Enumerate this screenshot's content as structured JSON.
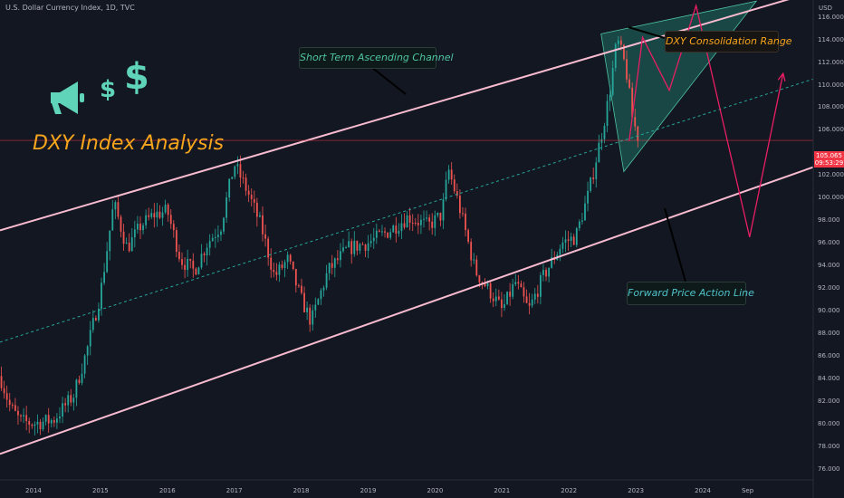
{
  "header": {
    "symbol_line": "U.S. Dollar Currency Index, 1D, TVC"
  },
  "axis": {
    "currency": "USD",
    "y_ticks": [
      "116.000",
      "114.000",
      "112.000",
      "110.000",
      "108.000",
      "106.000",
      "102.000",
      "100.000",
      "98.000",
      "96.000",
      "94.000",
      "92.000",
      "90.000",
      "88.000",
      "86.000",
      "84.000",
      "82.000",
      "80.000",
      "78.000",
      "76.000"
    ],
    "x_ticks": [
      "2014",
      "2015",
      "2016",
      "2017",
      "2018",
      "2019",
      "2020",
      "2021",
      "2022",
      "2023",
      "2024",
      "Sep"
    ]
  },
  "price_badge": {
    "price": "105.065",
    "countdown": "09:53:29"
  },
  "overlay_title": "DXY Index Analysis",
  "icons": [
    "megaphone-icon",
    "small-dollar-icon",
    "large-dollar-icon"
  ],
  "callouts": {
    "channel": "Short Term Ascending Channel",
    "consolidation": "DXY Consolidation Range",
    "forward": "Forward Price Action Line"
  },
  "colors": {
    "background": "#131722",
    "channel_line": "#f8bbd0",
    "midline": "#26a69a",
    "forecast": "#e91e63",
    "triangle_fill": "#1f6f64",
    "candle_up": "#26a69a",
    "candle_down": "#ef5350",
    "price_line": "#f23645",
    "title": "#f7a51c",
    "icon": "#5fd4b8"
  },
  "chart_data": {
    "type": "line",
    "title": "U.S. Dollar Currency Index, 1D, TVC",
    "ylabel": "USD",
    "ylim": [
      75,
      117.5
    ],
    "last_price": 105.065,
    "price_path": [
      {
        "x": 2013.5,
        "y": 84.2
      },
      {
        "x": 2013.65,
        "y": 81.5
      },
      {
        "x": 2013.8,
        "y": 80.2
      },
      {
        "x": 2014.0,
        "y": 80.0
      },
      {
        "x": 2014.3,
        "y": 80.3
      },
      {
        "x": 2014.6,
        "y": 82.5
      },
      {
        "x": 2014.8,
        "y": 86.5
      },
      {
        "x": 2015.0,
        "y": 91.5
      },
      {
        "x": 2015.2,
        "y": 99.5
      },
      {
        "x": 2015.4,
        "y": 95.5
      },
      {
        "x": 2015.6,
        "y": 97.5
      },
      {
        "x": 2015.8,
        "y": 98.5
      },
      {
        "x": 2016.0,
        "y": 98.8
      },
      {
        "x": 2016.2,
        "y": 94.5
      },
      {
        "x": 2016.4,
        "y": 93.5
      },
      {
        "x": 2016.6,
        "y": 96.0
      },
      {
        "x": 2016.8,
        "y": 97.5
      },
      {
        "x": 2017.0,
        "y": 103.0
      },
      {
        "x": 2017.2,
        "y": 100.5
      },
      {
        "x": 2017.4,
        "y": 97.5
      },
      {
        "x": 2017.6,
        "y": 93.0
      },
      {
        "x": 2017.8,
        "y": 94.5
      },
      {
        "x": 2018.0,
        "y": 91.0
      },
      {
        "x": 2018.15,
        "y": 89.0
      },
      {
        "x": 2018.4,
        "y": 93.5
      },
      {
        "x": 2018.7,
        "y": 95.5
      },
      {
        "x": 2019.0,
        "y": 96.0
      },
      {
        "x": 2019.3,
        "y": 97.0
      },
      {
        "x": 2019.6,
        "y": 98.3
      },
      {
        "x": 2019.9,
        "y": 97.5
      },
      {
        "x": 2020.1,
        "y": 98.5
      },
      {
        "x": 2020.2,
        "y": 102.5
      },
      {
        "x": 2020.35,
        "y": 99.5
      },
      {
        "x": 2020.6,
        "y": 93.5
      },
      {
        "x": 2020.9,
        "y": 91.0
      },
      {
        "x": 2021.0,
        "y": 90.0
      },
      {
        "x": 2021.2,
        "y": 92.5
      },
      {
        "x": 2021.4,
        "y": 90.0
      },
      {
        "x": 2021.6,
        "y": 92.8
      },
      {
        "x": 2021.9,
        "y": 96.0
      },
      {
        "x": 2022.1,
        "y": 96.5
      },
      {
        "x": 2022.3,
        "y": 100.5
      },
      {
        "x": 2022.5,
        "y": 106.0
      },
      {
        "x": 2022.6,
        "y": 109.0
      },
      {
        "x": 2022.72,
        "y": 114.0
      },
      {
        "x": 2022.85,
        "y": 111.5
      },
      {
        "x": 2022.95,
        "y": 107.0
      },
      {
        "x": 2023.05,
        "y": 105.0
      }
    ],
    "forecast_path": [
      {
        "x": 2022.9,
        "y": 105.0
      },
      {
        "x": 2023.1,
        "y": 114.2
      },
      {
        "x": 2023.5,
        "y": 109.5
      },
      {
        "x": 2023.9,
        "y": 117.0
      },
      {
        "x": 2024.7,
        "y": 96.5
      },
      {
        "x": 2025.2,
        "y": 111.0
      }
    ],
    "consolidation_range": [
      {
        "x": 2022.48,
        "y": 114.5
      },
      {
        "x": 2024.8,
        "y": 117.4
      },
      {
        "x": 2022.82,
        "y": 102.3
      }
    ],
    "channel_upper": [
      {
        "x": 2013.5,
        "y": 97.1
      },
      {
        "x": 2025.65,
        "y": 118.2
      }
    ],
    "channel_lower": [
      {
        "x": 2013.5,
        "y": 77.3
      },
      {
        "x": 2025.65,
        "y": 102.7
      }
    ],
    "channel_mid": [
      {
        "x": 2013.5,
        "y": 87.2
      },
      {
        "x": 2025.65,
        "y": 110.5
      }
    ]
  }
}
